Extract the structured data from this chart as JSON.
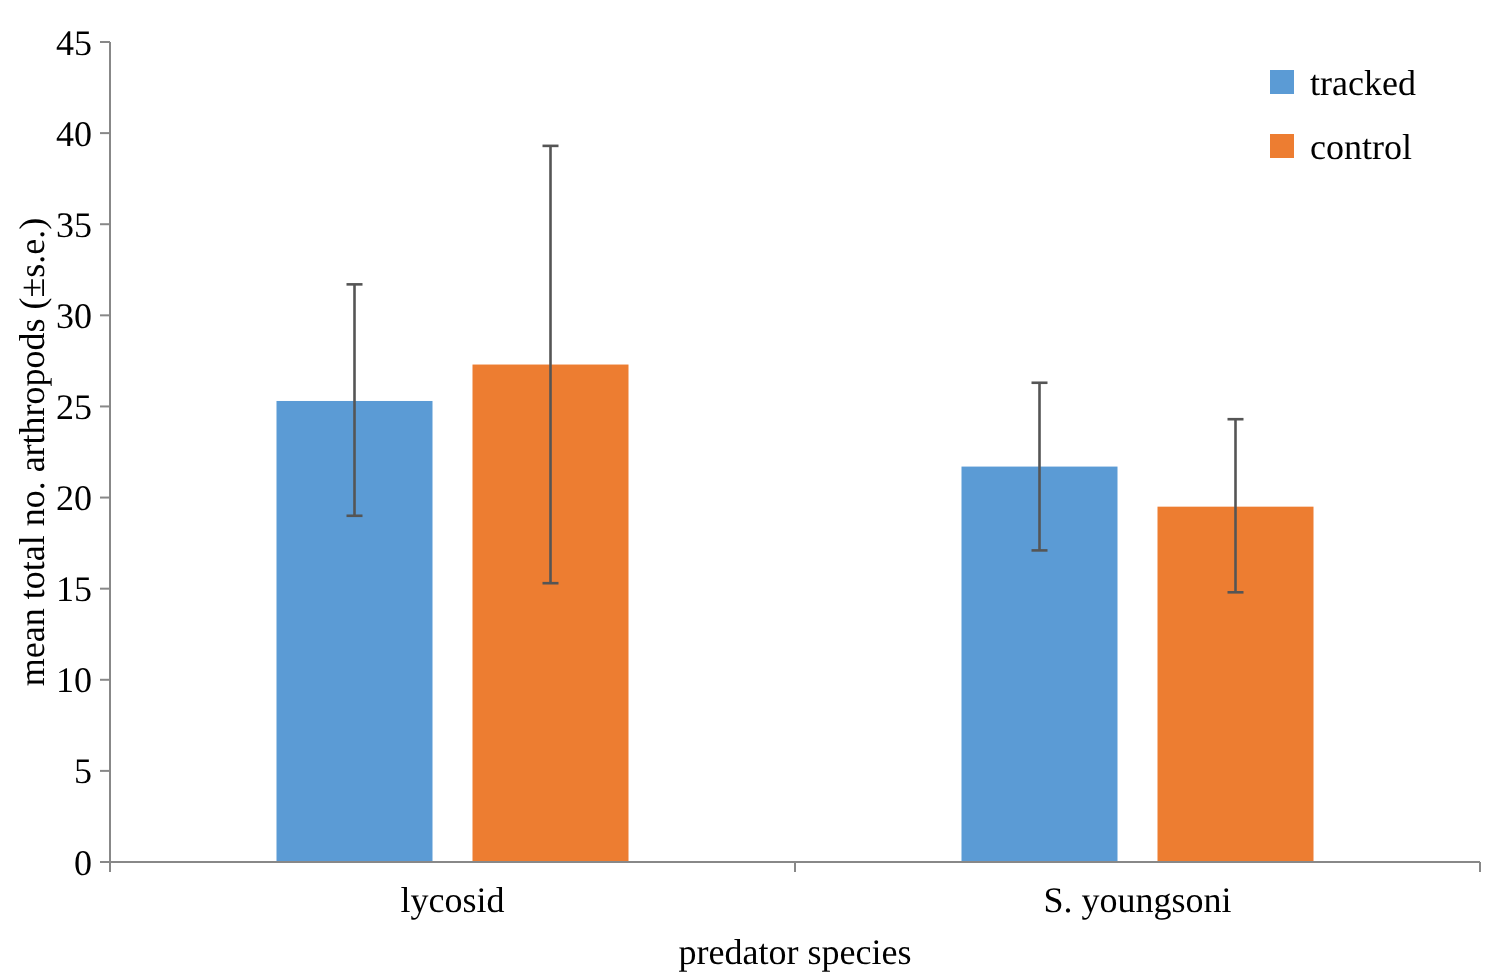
{
  "chart_data": {
    "type": "bar",
    "xlabel": "predator species",
    "ylabel": "mean total no. arthropods (±s.e.)",
    "categories": [
      "lycosid",
      "S. youngsoni"
    ],
    "series": [
      {
        "name": "tracked",
        "color": "#5b9bd5",
        "values": [
          25.3,
          21.7
        ],
        "errors": [
          [
            19,
            31.7
          ],
          [
            17.1,
            26.3
          ]
        ]
      },
      {
        "name": "control",
        "color": "#ed7d31",
        "values": [
          27.3,
          19.5
        ],
        "errors": [
          [
            15.3,
            39.3
          ],
          [
            14.8,
            24.3
          ]
        ]
      }
    ],
    "ylim": [
      0,
      45
    ],
    "yticks": [
      0,
      5,
      10,
      15,
      20,
      25,
      30,
      35,
      40,
      45
    ],
    "grid": false,
    "legend": "top right"
  }
}
